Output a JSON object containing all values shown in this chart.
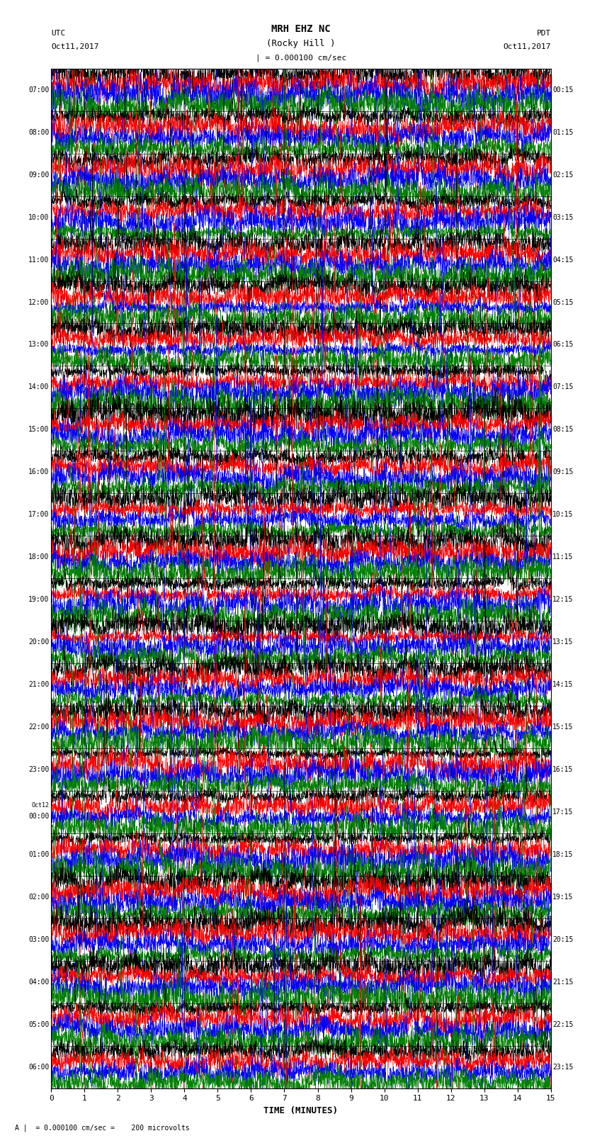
{
  "title_line1": "MRH EHZ NC",
  "title_line2": "(Rocky Hill )",
  "title_line3": "| = 0.000100 cm/sec",
  "label_utc": "UTC",
  "label_pdt": "PDT",
  "date_left": "Oct11,2017",
  "date_right": "Oct11,2017",
  "xlabel": "TIME (MINUTES)",
  "bottom_note": "= 0.000100 cm/sec =    200 microvolts",
  "xlim": [
    0,
    15
  ],
  "xticks": [
    0,
    1,
    2,
    3,
    4,
    5,
    6,
    7,
    8,
    9,
    10,
    11,
    12,
    13,
    14,
    15
  ],
  "num_rows": 24,
  "traces_per_row": 4,
  "colors": [
    "black",
    "red",
    "blue",
    "green"
  ],
  "utc_labels": [
    "07:00",
    "08:00",
    "09:00",
    "10:00",
    "11:00",
    "12:00",
    "13:00",
    "14:00",
    "15:00",
    "16:00",
    "17:00",
    "18:00",
    "19:00",
    "20:00",
    "21:00",
    "22:00",
    "23:00",
    "Oct12\n00:00",
    "01:00",
    "02:00",
    "03:00",
    "04:00",
    "05:00",
    "06:00"
  ],
  "pdt_labels": [
    "00:15",
    "01:15",
    "02:15",
    "03:15",
    "04:15",
    "05:15",
    "06:15",
    "07:15",
    "08:15",
    "09:15",
    "10:15",
    "11:15",
    "12:15",
    "13:15",
    "14:15",
    "15:15",
    "16:15",
    "17:15",
    "18:15",
    "19:15",
    "20:15",
    "21:15",
    "22:15",
    "23:15"
  ],
  "background_color": "white",
  "fig_width": 8.5,
  "fig_height": 16.13,
  "dpi": 100,
  "grid_color": "#666666",
  "grid_linewidth": 0.5
}
